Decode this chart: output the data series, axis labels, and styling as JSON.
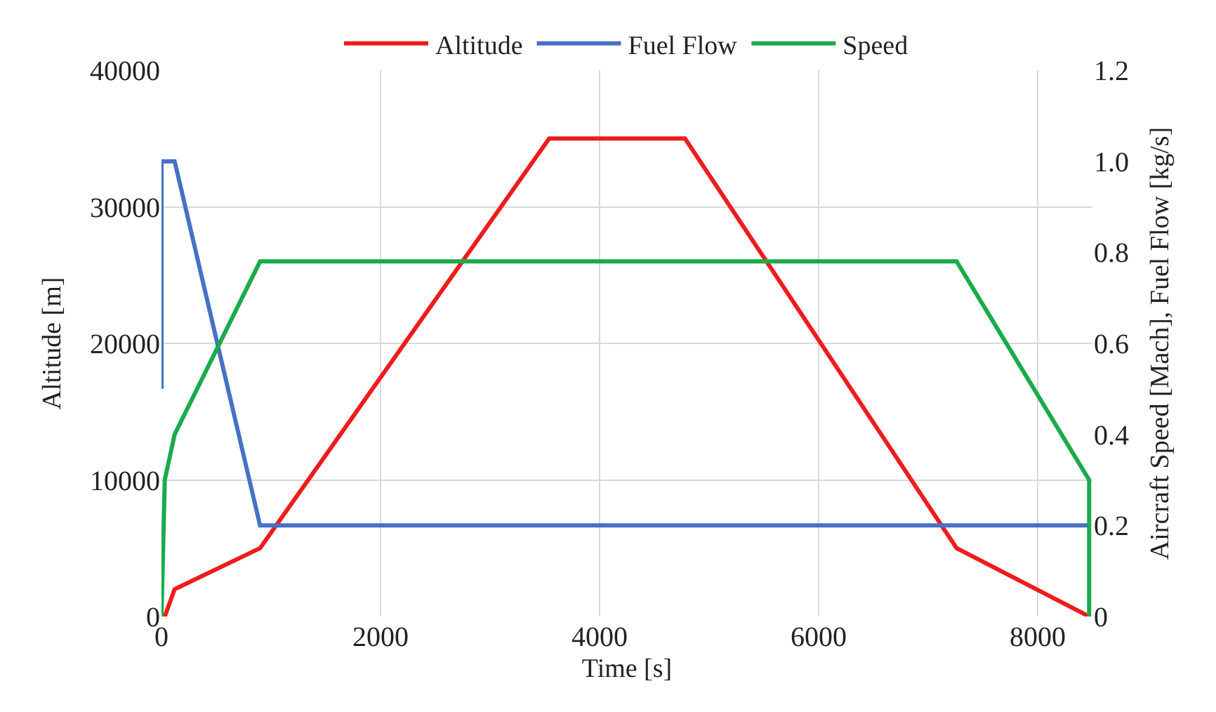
{
  "chart_data": {
    "type": "line",
    "xlabel": "Time [s]",
    "ylabel": "Altitude [m]",
    "y2label": "Aircraft Speed [Mach], Fuel Flow [kg/s]",
    "series": [
      {
        "name": "Altitude",
        "color": "#ee1c1c",
        "x": [
          30,
          120,
          900,
          3540,
          4780,
          7260,
          8470
        ],
        "values": [
          0,
          2000,
          5000,
          35000,
          35000,
          5000,
          0
        ]
      },
      {
        "name": "Fuel Flow",
        "color": "#4472c4",
        "axis": "y2",
        "x": [
          0,
          0,
          120,
          900,
          8470
        ],
        "values": [
          0.5,
          1.0,
          1.0,
          0.2,
          0.2
        ]
      },
      {
        "name": "Speed",
        "color": "#1aab4a",
        "axis": "y2",
        "x": [
          0,
          30,
          120,
          900,
          7260,
          8470,
          8470
        ],
        "values": [
          0,
          0.3,
          0.4,
          0.78,
          0.78,
          0.3,
          0
        ]
      }
    ],
    "xlim": [
      0,
      8500
    ],
    "xticks": [
      0,
      2000,
      4000,
      6000,
      8000
    ],
    "ylim": [
      0,
      40000
    ],
    "yticks": [
      0,
      10000,
      20000,
      30000,
      40000
    ],
    "y2lim": [
      0,
      1.2
    ],
    "y2ticks": [
      {
        "value": 0,
        "label": "0"
      },
      0.2,
      0.4,
      0.6,
      0.8,
      {
        "value": 1.0,
        "label": "1.0"
      },
      1.2
    ],
    "grid": true,
    "legend": "top",
    "line_style": "solid",
    "marker": "none"
  }
}
